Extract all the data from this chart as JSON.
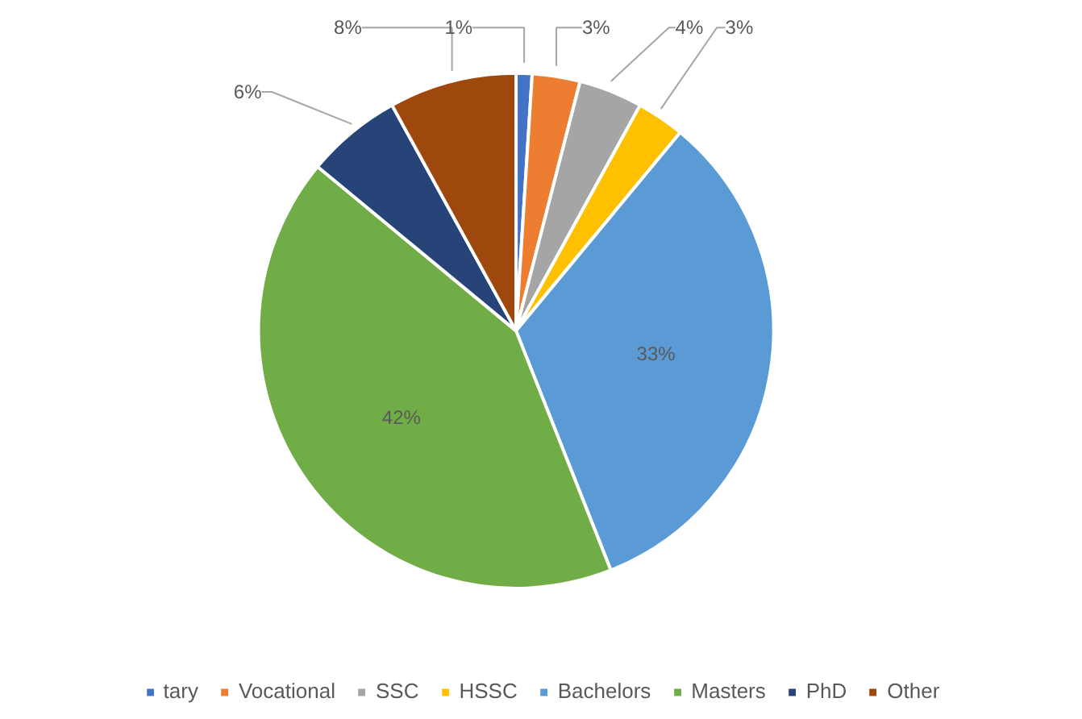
{
  "chart_data": {
    "type": "pie",
    "categories": [
      "tary",
      "Vocational",
      "SSC",
      "HSSC",
      "Bachelors",
      "Masters",
      "PhD",
      "Other"
    ],
    "values": [
      1,
      3,
      4,
      3,
      33,
      42,
      6,
      8
    ],
    "colors": [
      "#4472c4",
      "#ed7d31",
      "#a5a5a5",
      "#ffc000",
      "#5b9bd5",
      "#70ad47",
      "#264478",
      "#9e480e"
    ],
    "value_labels": [
      "1%",
      "3%",
      "4%",
      "3%",
      "33%",
      "42%",
      "6%",
      "8%"
    ],
    "legend": "bottom"
  }
}
